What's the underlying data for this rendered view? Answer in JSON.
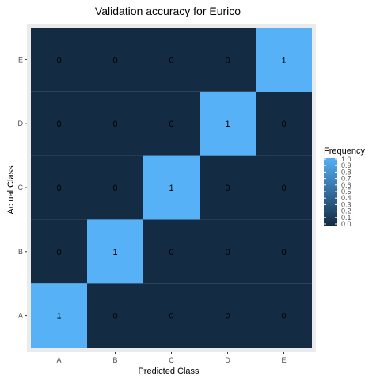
{
  "chart_data": {
    "type": "heatmap",
    "title": "Validation accuracy for Eurico",
    "xlabel": "Predicted Class",
    "ylabel": "Actual Class",
    "x_categories": [
      "A",
      "B",
      "C",
      "D",
      "E"
    ],
    "y_categories": [
      "A",
      "B",
      "C",
      "D",
      "E"
    ],
    "values": [
      [
        1,
        0,
        0,
        0,
        0
      ],
      [
        0,
        1,
        0,
        0,
        0
      ],
      [
        0,
        0,
        1,
        0,
        0
      ],
      [
        0,
        0,
        0,
        1,
        0
      ],
      [
        0,
        0,
        0,
        0,
        1
      ]
    ],
    "legend": {
      "title": "Frequency",
      "range": [
        0,
        1
      ],
      "ticks": [
        "0.0",
        "0.1",
        "0.2",
        "0.3",
        "0.4",
        "0.5",
        "0.6",
        "0.7",
        "0.8",
        "0.9",
        "1.0"
      ],
      "position": "right"
    },
    "colors": {
      "low": "#132B43",
      "high": "#56B1F7",
      "panel_background": "#EBEBEB",
      "tick_color": "#333333"
    }
  }
}
